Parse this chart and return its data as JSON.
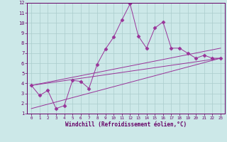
{
  "title": "",
  "xlabel": "Windchill (Refroidissement éolien,°C)",
  "ylabel": "",
  "bg_color": "#cce8e8",
  "line_color": "#993399",
  "grid_color": "#aacccc",
  "xlim": [
    -0.5,
    23.5
  ],
  "ylim": [
    1,
    12
  ],
  "xticks": [
    0,
    1,
    2,
    3,
    4,
    5,
    6,
    7,
    8,
    9,
    10,
    11,
    12,
    13,
    14,
    15,
    16,
    17,
    18,
    19,
    20,
    21,
    22,
    23
  ],
  "yticks": [
    1,
    2,
    3,
    4,
    5,
    6,
    7,
    8,
    9,
    10,
    11,
    12
  ],
  "main_x": [
    0,
    1,
    2,
    3,
    4,
    5,
    6,
    7,
    8,
    9,
    10,
    11,
    12,
    13,
    14,
    15,
    16,
    17,
    18,
    19,
    20,
    21,
    22,
    23
  ],
  "main_y": [
    3.8,
    2.8,
    3.3,
    1.5,
    1.8,
    4.3,
    4.2,
    3.5,
    5.9,
    7.4,
    8.6,
    10.3,
    11.9,
    8.7,
    7.5,
    9.5,
    10.1,
    7.5,
    7.5,
    7.0,
    6.5,
    6.8,
    6.5,
    6.5
  ],
  "line1_x": [
    0,
    23
  ],
  "line1_y": [
    3.8,
    7.5
  ],
  "line2_x": [
    0,
    23
  ],
  "line2_y": [
    3.8,
    6.5
  ],
  "line3_x": [
    0,
    23
  ],
  "line3_y": [
    1.5,
    6.5
  ]
}
